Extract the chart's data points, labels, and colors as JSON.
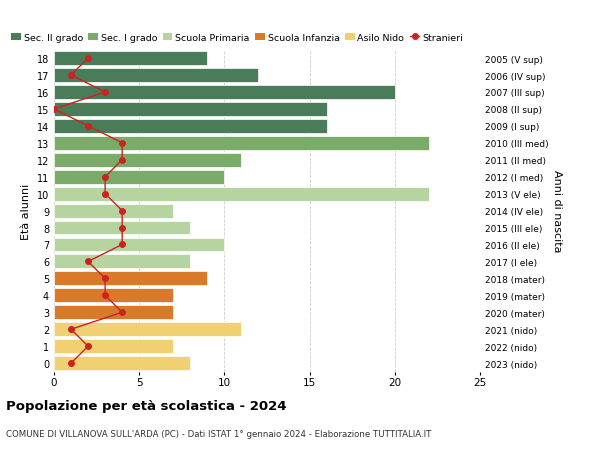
{
  "ages": [
    18,
    17,
    16,
    15,
    14,
    13,
    12,
    11,
    10,
    9,
    8,
    7,
    6,
    5,
    4,
    3,
    2,
    1,
    0
  ],
  "right_labels": [
    "2005 (V sup)",
    "2006 (IV sup)",
    "2007 (III sup)",
    "2008 (II sup)",
    "2009 (I sup)",
    "2010 (III med)",
    "2011 (II med)",
    "2012 (I med)",
    "2013 (V ele)",
    "2014 (IV ele)",
    "2015 (III ele)",
    "2016 (II ele)",
    "2017 (I ele)",
    "2018 (mater)",
    "2019 (mater)",
    "2020 (mater)",
    "2021 (nido)",
    "2022 (nido)",
    "2023 (nido)"
  ],
  "bar_values": [
    9,
    12,
    20,
    16,
    16,
    22,
    11,
    10,
    22,
    7,
    8,
    10,
    8,
    9,
    7,
    7,
    11,
    7,
    8
  ],
  "bar_colors": [
    "#4a7c59",
    "#4a7c59",
    "#4a7c59",
    "#4a7c59",
    "#4a7c59",
    "#7aab68",
    "#7aab68",
    "#7aab68",
    "#b5d4a0",
    "#b5d4a0",
    "#b5d4a0",
    "#b5d4a0",
    "#b5d4a0",
    "#d97a2a",
    "#d97a2a",
    "#d97a2a",
    "#f0d070",
    "#f0d070",
    "#f0d070"
  ],
  "stranieri_values": [
    2,
    1,
    3,
    0,
    2,
    4,
    4,
    3,
    3,
    4,
    4,
    4,
    2,
    3,
    3,
    4,
    1,
    2,
    1
  ],
  "title": "Popolazione per età scolastica - 2024",
  "subtitle": "COMUNE DI VILLANOVA SULL'ARDA (PC) - Dati ISTAT 1° gennaio 2024 - Elaborazione TUTTITALIA.IT",
  "ylabel_left": "Età alunni",
  "ylabel_right": "Anni di nascita",
  "xlim": [
    0,
    25
  ],
  "legend_labels": [
    "Sec. II grado",
    "Sec. I grado",
    "Scuola Primaria",
    "Scuola Infanzia",
    "Asilo Nido",
    "Stranieri"
  ],
  "legend_colors": [
    "#4a7c59",
    "#7aab68",
    "#b5d4a0",
    "#d97a2a",
    "#f0d070",
    "#cc2222"
  ],
  "stranieri_color": "#cc2222",
  "grid_color": "#cccccc",
  "bg_color": "#ffffff"
}
